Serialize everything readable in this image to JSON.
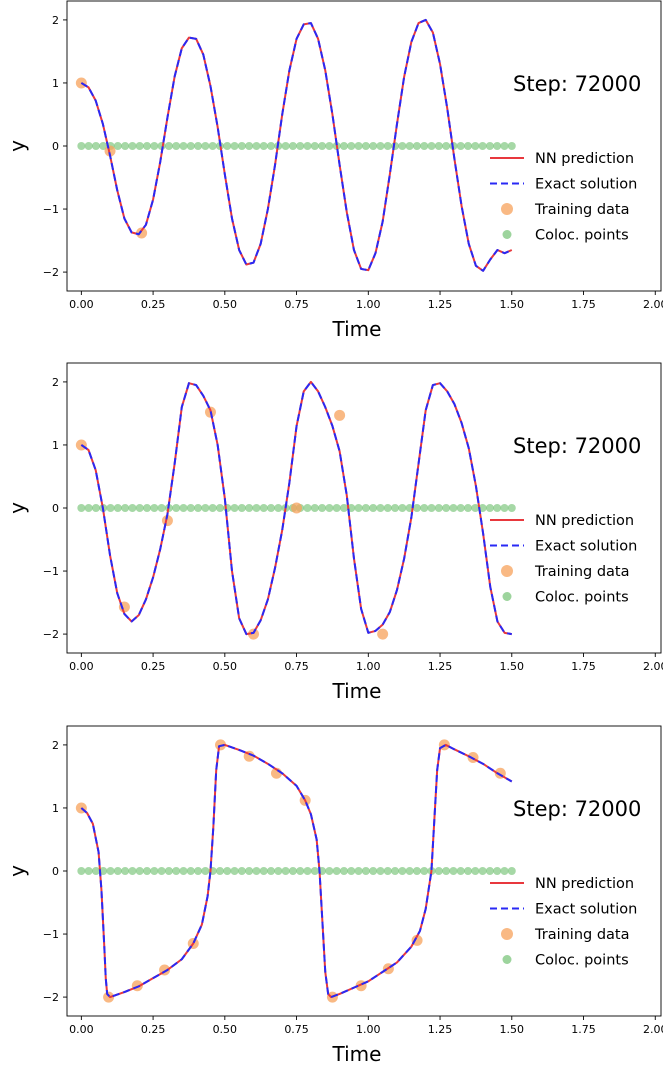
{
  "chart_data": [
    {
      "type": "line",
      "step_text": "Step: 72000",
      "xlabel": "Time",
      "ylabel": "y",
      "xlim": [
        -0.05,
        2.02
      ],
      "ylim": [
        -2.3,
        2.3
      ],
      "xticks": [
        0,
        0.25,
        0.5,
        0.75,
        1.0,
        1.25,
        1.5,
        1.75,
        2.0
      ],
      "xtick_labels": [
        "0.00",
        "0.25",
        "0.50",
        "0.75",
        "1.00",
        "1.25",
        "1.50",
        "1.75",
        "2.00"
      ],
      "yticks": [
        -2,
        -1,
        0,
        1,
        2
      ],
      "ytick_labels": [
        "−2",
        "−1",
        "0",
        "1",
        "2"
      ],
      "legend": [
        "NN prediction",
        "Exact solution",
        "Training data",
        "Coloc. points"
      ],
      "legend_loc": "center right",
      "colors": {
        "prediction": "#e8383d",
        "exact": "#2929f5",
        "training": "#f7a25b",
        "coloc": "#5cb85c"
      },
      "curve": {
        "x": [
          0,
          0.025,
          0.05,
          0.075,
          0.1,
          0.125,
          0.15,
          0.175,
          0.2,
          0.225,
          0.25,
          0.275,
          0.3,
          0.325,
          0.35,
          0.375,
          0.4,
          0.425,
          0.45,
          0.475,
          0.5,
          0.525,
          0.55,
          0.575,
          0.6,
          0.625,
          0.65,
          0.675,
          0.7,
          0.725,
          0.75,
          0.775,
          0.8,
          0.825,
          0.85,
          0.875,
          0.9,
          0.925,
          0.95,
          0.975,
          1.0,
          1.025,
          1.05,
          1.075,
          1.1,
          1.125,
          1.15,
          1.175,
          1.2,
          1.225,
          1.25,
          1.275,
          1.3,
          1.325,
          1.35,
          1.375,
          1.4,
          1.425,
          1.45,
          1.475,
          1.5
        ],
        "y": [
          1.0,
          0.93,
          0.72,
          0.35,
          -0.15,
          -0.7,
          -1.15,
          -1.37,
          -1.4,
          -1.25,
          -0.85,
          -0.25,
          0.45,
          1.1,
          1.55,
          1.72,
          1.7,
          1.45,
          0.95,
          0.3,
          -0.45,
          -1.15,
          -1.65,
          -1.88,
          -1.85,
          -1.55,
          -1.0,
          -0.3,
          0.5,
          1.2,
          1.7,
          1.93,
          1.95,
          1.7,
          1.2,
          0.5,
          -0.3,
          -1.05,
          -1.65,
          -1.95,
          -1.97,
          -1.7,
          -1.2,
          -0.45,
          0.35,
          1.1,
          1.65,
          1.95,
          2.0,
          1.8,
          1.3,
          0.6,
          -0.2,
          -0.95,
          -1.55,
          -1.9,
          -1.98,
          -1.8,
          -1.65,
          -1.7,
          -1.65
        ]
      },
      "training_data": {
        "x": [
          0.0,
          0.1,
          0.21
        ],
        "y": [
          1.0,
          -0.08,
          -1.38
        ]
      },
      "coloc_points": {
        "x_start": 0.0,
        "x_end": 1.5,
        "count": 60,
        "y": 0
      }
    },
    {
      "type": "line",
      "step_text": "Step: 72000",
      "xlabel": "Time",
      "ylabel": "y",
      "xlim": [
        -0.05,
        2.02
      ],
      "ylim": [
        -2.3,
        2.3
      ],
      "xticks": [
        0,
        0.25,
        0.5,
        0.75,
        1.0,
        1.25,
        1.5,
        1.75,
        2.0
      ],
      "xtick_labels": [
        "0.00",
        "0.25",
        "0.50",
        "0.75",
        "1.00",
        "1.25",
        "1.50",
        "1.75",
        "2.00"
      ],
      "yticks": [
        -2,
        -1,
        0,
        1,
        2
      ],
      "ytick_labels": [
        "−2",
        "−1",
        "0",
        "1",
        "2"
      ],
      "legend": [
        "NN prediction",
        "Exact solution",
        "Training data",
        "Coloc. points"
      ],
      "legend_loc": "center right",
      "colors": {
        "prediction": "#e8383d",
        "exact": "#2929f5",
        "training": "#f7a25b",
        "coloc": "#5cb85c"
      },
      "curve": {
        "x": [
          0,
          0.025,
          0.05,
          0.075,
          0.1,
          0.125,
          0.15,
          0.175,
          0.2,
          0.225,
          0.25,
          0.275,
          0.3,
          0.325,
          0.35,
          0.375,
          0.4,
          0.425,
          0.45,
          0.475,
          0.5,
          0.525,
          0.55,
          0.575,
          0.6,
          0.625,
          0.65,
          0.675,
          0.7,
          0.725,
          0.75,
          0.775,
          0.8,
          0.825,
          0.85,
          0.875,
          0.9,
          0.925,
          0.95,
          0.975,
          1.0,
          1.025,
          1.05,
          1.075,
          1.1,
          1.125,
          1.15,
          1.175,
          1.2,
          1.225,
          1.25,
          1.275,
          1.3,
          1.325,
          1.35,
          1.375,
          1.4,
          1.425,
          1.45,
          1.475,
          1.5
        ],
        "y": [
          1.0,
          0.92,
          0.6,
          0.0,
          -0.75,
          -1.35,
          -1.68,
          -1.8,
          -1.7,
          -1.45,
          -1.1,
          -0.65,
          -0.1,
          0.7,
          1.6,
          1.98,
          1.95,
          1.78,
          1.55,
          1.0,
          0.15,
          -1.0,
          -1.75,
          -2.0,
          -1.98,
          -1.78,
          -1.45,
          -0.95,
          -0.35,
          0.4,
          1.3,
          1.85,
          2.0,
          1.85,
          1.6,
          1.3,
          0.9,
          0.2,
          -0.8,
          -1.6,
          -1.98,
          -1.95,
          -1.85,
          -1.65,
          -1.3,
          -0.8,
          -0.15,
          0.7,
          1.55,
          1.95,
          1.98,
          1.85,
          1.65,
          1.35,
          0.95,
          0.35,
          -0.4,
          -1.25,
          -1.8,
          -1.98,
          -2.0
        ]
      },
      "training_data": {
        "x": [
          0.0,
          0.15,
          0.3,
          0.45,
          0.6,
          0.75,
          0.9,
          1.05
        ],
        "y": [
          1.0,
          -1.57,
          -0.2,
          1.52,
          -2.0,
          0.0,
          1.47,
          -2.0
        ]
      },
      "coloc_points": {
        "x_start": 0.0,
        "x_end": 1.5,
        "count": 60,
        "y": 0
      }
    },
    {
      "type": "line",
      "step_text": "Step: 72000",
      "xlabel": "Time",
      "ylabel": "y",
      "xlim": [
        -0.05,
        2.02
      ],
      "ylim": [
        -2.3,
        2.3
      ],
      "xticks": [
        0,
        0.25,
        0.5,
        0.75,
        1.0,
        1.25,
        1.5,
        1.75,
        2.0
      ],
      "xtick_labels": [
        "0.00",
        "0.25",
        "0.50",
        "0.75",
        "1.00",
        "1.25",
        "1.50",
        "1.75",
        "2.00"
      ],
      "yticks": [
        -2,
        -1,
        0,
        1,
        2
      ],
      "ytick_labels": [
        "−2",
        "−1",
        "0",
        "1",
        "2"
      ],
      "legend": [
        "NN prediction",
        "Exact solution",
        "Training data",
        "Coloc. points"
      ],
      "legend_loc": "center right",
      "colors": {
        "prediction": "#e8383d",
        "exact": "#2929f5",
        "training": "#f7a25b",
        "coloc": "#5cb85c"
      },
      "curve": {
        "x": [
          0,
          0.02,
          0.04,
          0.06,
          0.07,
          0.08,
          0.085,
          0.09,
          0.1,
          0.15,
          0.2,
          0.25,
          0.3,
          0.35,
          0.39,
          0.42,
          0.44,
          0.45,
          0.46,
          0.47,
          0.48,
          0.5,
          0.55,
          0.6,
          0.65,
          0.7,
          0.75,
          0.78,
          0.8,
          0.82,
          0.83,
          0.84,
          0.85,
          0.86,
          0.87,
          0.9,
          0.95,
          1.0,
          1.05,
          1.1,
          1.15,
          1.18,
          1.2,
          1.22,
          1.23,
          1.24,
          1.25,
          1.27,
          1.3,
          1.35,
          1.4,
          1.45,
          1.5
        ],
        "y": [
          1.0,
          0.92,
          0.75,
          0.3,
          -0.3,
          -1.2,
          -1.7,
          -1.95,
          -2.0,
          -1.92,
          -1.83,
          -1.7,
          -1.57,
          -1.4,
          -1.15,
          -0.85,
          -0.4,
          0.0,
          0.7,
          1.6,
          1.98,
          2.0,
          1.92,
          1.83,
          1.7,
          1.55,
          1.35,
          1.12,
          0.9,
          0.5,
          0.0,
          -0.8,
          -1.6,
          -1.95,
          -2.0,
          -1.95,
          -1.85,
          -1.75,
          -1.6,
          -1.45,
          -1.2,
          -0.95,
          -0.6,
          0.0,
          0.8,
          1.6,
          1.95,
          2.0,
          1.93,
          1.82,
          1.7,
          1.55,
          1.42
        ]
      },
      "training_data": {
        "x": [
          0.0,
          0.095,
          0.195,
          0.29,
          0.39,
          0.485,
          0.585,
          0.68,
          0.78,
          0.875,
          0.975,
          1.07,
          1.17,
          1.265,
          1.365,
          1.46
        ],
        "y": [
          1.0,
          -2.0,
          -1.82,
          -1.57,
          -1.15,
          2.0,
          1.82,
          1.55,
          1.12,
          -2.0,
          -1.82,
          -1.55,
          -1.1,
          2.0,
          1.8,
          1.55
        ]
      },
      "coloc_points": {
        "x_start": 0.0,
        "x_end": 1.5,
        "count": 60,
        "y": 0
      }
    }
  ]
}
